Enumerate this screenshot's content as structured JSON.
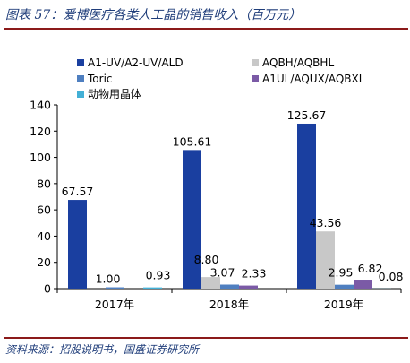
{
  "figure": {
    "title": "图表 57：爱博医疗各类人工晶的销售收入（百万元）",
    "source": "资料来源：招股说明书，国盛证券研究所"
  },
  "colors": {
    "title_text": "#1f3d7a",
    "rule": "#8b1a1a",
    "axis": "#000000"
  },
  "chart_data": {
    "type": "bar",
    "title": "",
    "xlabel": "",
    "ylabel": "",
    "categories": [
      "2017年",
      "2018年",
      "2019年"
    ],
    "ylim": [
      0,
      140
    ],
    "yticks": [
      0,
      20,
      40,
      60,
      80,
      100,
      120,
      140
    ],
    "grid": false,
    "legend_position": "top",
    "series": [
      {
        "name": "A1-UV/A2-UV/ALD",
        "color": "#1a3fa0",
        "values": [
          67.57,
          105.61,
          125.67
        ],
        "labels": [
          "67.57",
          "105.61",
          "125.67"
        ]
      },
      {
        "name": "AQBH/AQBHL",
        "color": "#c8c8c8",
        "values": [
          0,
          8.8,
          43.56
        ],
        "labels": [
          "",
          "8.80",
          "43.56"
        ]
      },
      {
        "name": "Toric",
        "color": "#4f7fc0",
        "values": [
          1.0,
          3.07,
          2.95
        ],
        "labels": [
          "1.00",
          "3.07",
          "2.95"
        ]
      },
      {
        "name": "A1UL/AQUX/AQBXL",
        "color": "#7b5aa6",
        "values": [
          0,
          2.33,
          6.82
        ],
        "labels": [
          "",
          "2.33",
          "6.82"
        ]
      },
      {
        "name": "动物用晶体",
        "color": "#43b0d6",
        "values": [
          0.93,
          0,
          0.08
        ],
        "labels": [
          "0.93",
          "",
          "0.08"
        ]
      }
    ]
  }
}
